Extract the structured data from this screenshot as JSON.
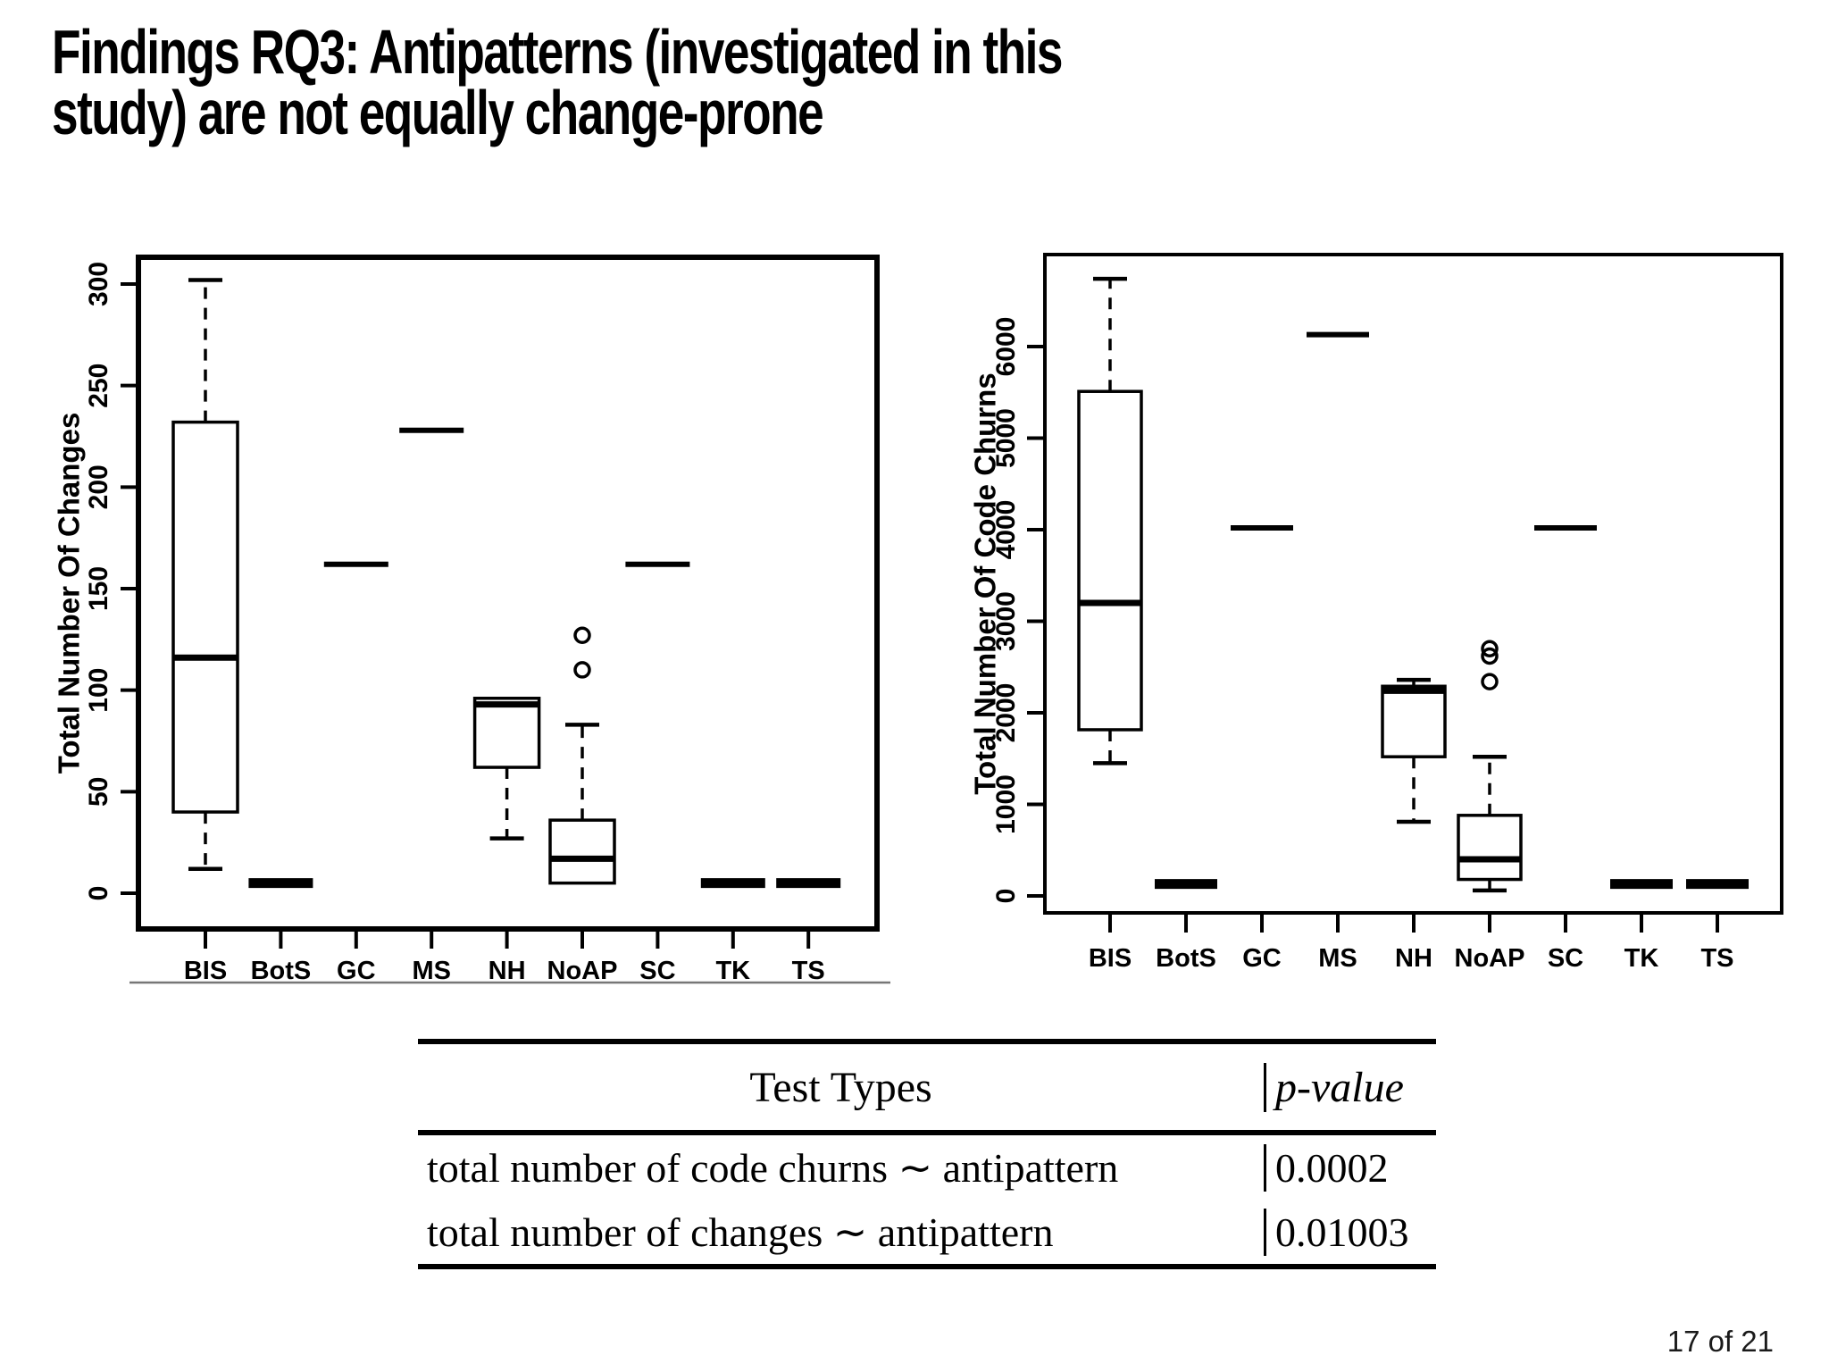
{
  "slide": {
    "title_line1": "Findings RQ3: Antipatterns (investigated in this",
    "title_line2": "study) are not equally change-prone",
    "page_indicator": "17 of 21"
  },
  "colors": {
    "foreground": "#000000",
    "background": "#ffffff"
  },
  "table": {
    "header": {
      "col1": "Test Types",
      "col2": "p-value"
    },
    "rows": [
      {
        "test_type": "total number of code churns ∼ antipattern",
        "p_value": "0.0002"
      },
      {
        "test_type": "total number of changes ∼ antipattern",
        "p_value": "0.01003"
      }
    ]
  },
  "chart_data": [
    {
      "type": "boxplot",
      "title": "",
      "xlabel": "",
      "ylabel": "Total Number Of Changes",
      "ylim": [
        0,
        312
      ],
      "yticks": [
        0,
        50,
        100,
        150,
        200,
        250,
        300
      ],
      "grid": false,
      "legend": null,
      "categories": [
        "BIS",
        "BotS",
        "GC",
        "MS",
        "NH",
        "NoAP",
        "SC",
        "TK",
        "TS"
      ],
      "boxes": [
        {
          "category": "BIS",
          "min": 12,
          "q1": 40,
          "median": 116,
          "q3": 232,
          "max": 302
        },
        {
          "category": "BotS",
          "value": 5,
          "bar": true
        },
        {
          "category": "GC",
          "value": 162
        },
        {
          "category": "MS",
          "value": 228
        },
        {
          "category": "NH",
          "min": 27,
          "q1": 62,
          "median": 93,
          "q3": 96,
          "max": 96
        },
        {
          "category": "NoAP",
          "min": 5,
          "q1": 5,
          "median": 17,
          "q3": 36,
          "max": 83,
          "outliers": [
            110,
            127
          ]
        },
        {
          "category": "SC",
          "value": 162
        },
        {
          "category": "TK",
          "value": 5,
          "bar": true
        },
        {
          "category": "TS",
          "value": 5,
          "bar": true
        }
      ]
    },
    {
      "type": "boxplot",
      "title": "",
      "xlabel": "",
      "ylabel": "Total Number Of Code Churns",
      "ylim": [
        0,
        7000
      ],
      "yticks": [
        0,
        1000,
        2000,
        3000,
        4000,
        5000,
        6000
      ],
      "grid": false,
      "legend": null,
      "categories": [
        "BIS",
        "BotS",
        "GC",
        "MS",
        "NH",
        "NoAP",
        "SC",
        "TK",
        "TS"
      ],
      "boxes": [
        {
          "category": "BIS",
          "min": 1450,
          "q1": 1815,
          "median": 3200,
          "q3": 5510,
          "max": 6740
        },
        {
          "category": "BotS",
          "value": 130,
          "bar": true
        },
        {
          "category": "GC",
          "value": 4020
        },
        {
          "category": "MS",
          "value": 6130
        },
        {
          "category": "NH",
          "min": 810,
          "q1": 1520,
          "median": 2240,
          "q3": 2290,
          "max": 2360
        },
        {
          "category": "NoAP",
          "min": 60,
          "q1": 180,
          "median": 400,
          "q3": 880,
          "max": 1520,
          "outliers": [
            2340,
            2620,
            2700
          ]
        },
        {
          "category": "SC",
          "value": 4020
        },
        {
          "category": "TK",
          "value": 130,
          "bar": true
        },
        {
          "category": "TS",
          "value": 130,
          "bar": true
        }
      ]
    }
  ]
}
